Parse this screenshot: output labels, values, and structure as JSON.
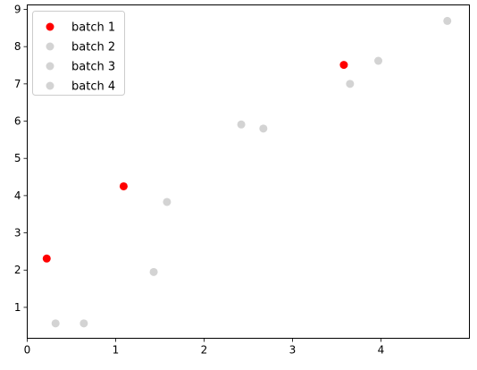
{
  "chart_data": {
    "type": "scatter",
    "title": "",
    "xlabel": "",
    "ylabel": "",
    "xlim": [
      0,
      5.0
    ],
    "ylim": [
      0.17,
      9.12
    ],
    "xticks": [
      0,
      1,
      2,
      3,
      4
    ],
    "yticks": [
      1,
      2,
      3,
      4,
      5,
      6,
      7,
      8,
      9
    ],
    "grid": false,
    "legend_position": "top-left",
    "series": [
      {
        "name": "batch 1",
        "color": "#ff0000",
        "points": [
          [
            0.22,
            2.31
          ],
          [
            1.09,
            4.25
          ],
          [
            3.58,
            7.51
          ]
        ]
      },
      {
        "name": "batch 2",
        "color": "#d3d3d3",
        "points": [
          [
            0.32,
            0.57
          ],
          [
            0.64,
            0.57
          ],
          [
            1.43,
            1.95
          ]
        ]
      },
      {
        "name": "batch 3",
        "color": "#d3d3d3",
        "points": [
          [
            1.58,
            3.83
          ],
          [
            2.42,
            5.91
          ],
          [
            2.67,
            5.8
          ]
        ]
      },
      {
        "name": "batch 4",
        "color": "#d3d3d3",
        "points": [
          [
            3.65,
            7.0
          ],
          [
            3.97,
            7.62
          ],
          [
            4.75,
            8.69
          ]
        ]
      }
    ]
  }
}
